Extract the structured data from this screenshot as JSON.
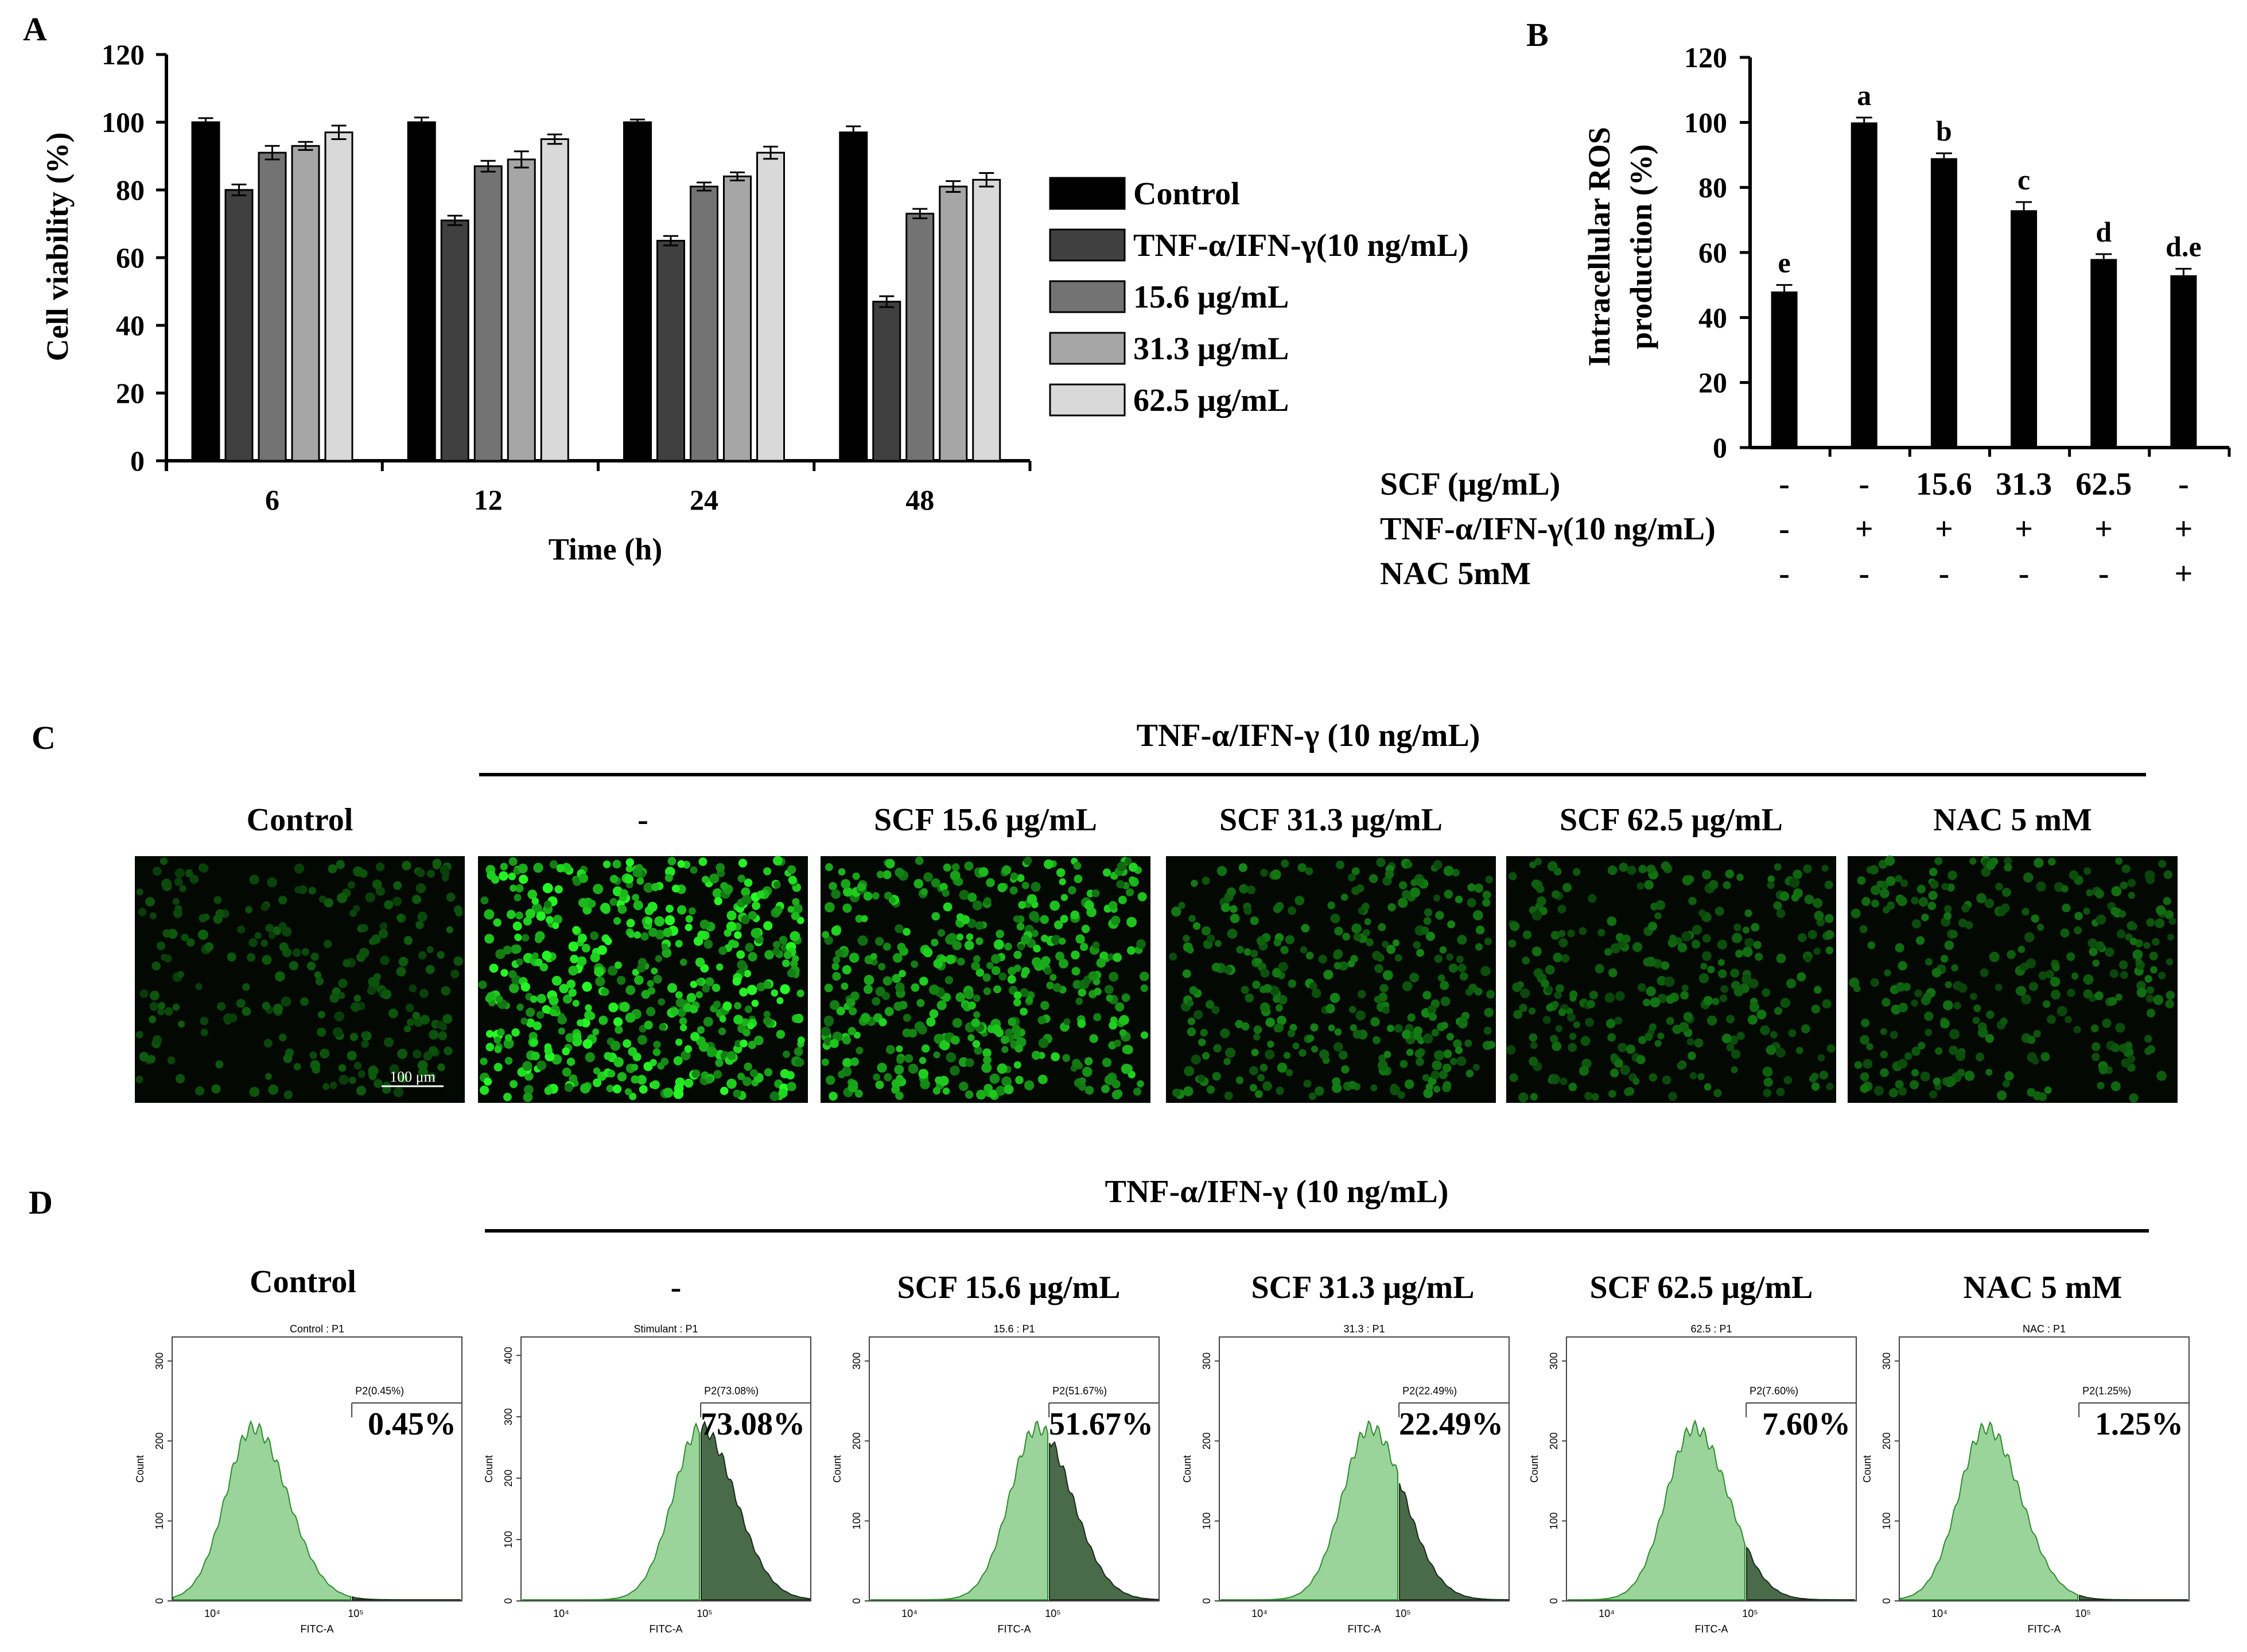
{
  "panels": {
    "A": "A",
    "B": "B",
    "C": "C",
    "D": "D"
  },
  "colors": {
    "control": "#000000",
    "tnf": "#404040",
    "scf156": "#737373",
    "scf313": "#a6a6a6",
    "scf625": "#d9d9d9",
    "hist_light": "#9bd49b",
    "hist_dark": "#4a6b4a",
    "hist_line": "#2e8b2e",
    "fluor": "#33dd33"
  },
  "chart_data": [
    {
      "type": "bar",
      "ylabel": "Cell viability (%)",
      "xlabel": "Time (h)",
      "ylim": [
        0,
        120
      ],
      "yticks": [
        "0",
        "20",
        "40",
        "60",
        "80",
        "100",
        "120"
      ],
      "categories": [
        "6",
        "12",
        "24",
        "48"
      ],
      "series": [
        {
          "name": "Control",
          "values": [
            100,
            100,
            100,
            97
          ],
          "errors": [
            1.2,
            1.4,
            0.8,
            1.8
          ]
        },
        {
          "name": "TNF-α/IFN-γ(10 ng/mL)",
          "values": [
            80,
            71,
            65,
            47
          ],
          "errors": [
            1.6,
            1.4,
            1.4,
            1.6
          ]
        },
        {
          "name": "15.6 μg/mL",
          "values": [
            91,
            87,
            81,
            73
          ],
          "errors": [
            2.0,
            1.6,
            1.2,
            1.4
          ]
        },
        {
          "name": "31.3 μg/mL",
          "values": [
            93,
            89,
            84,
            81
          ],
          "errors": [
            1.2,
            2.4,
            1.2,
            1.6
          ]
        },
        {
          "name": "62.5 μg/mL",
          "values": [
            97,
            95,
            91,
            83
          ],
          "errors": [
            2.0,
            1.4,
            1.8,
            2.0
          ]
        }
      ]
    },
    {
      "type": "bar",
      "ylabel_line1": "Intracellular ROS",
      "ylabel_line2": "production (%)",
      "ylim": [
        0,
        120
      ],
      "yticks": [
        "0",
        "20",
        "40",
        "60",
        "80",
        "100",
        "120"
      ],
      "values": [
        48,
        100,
        89,
        73,
        58,
        53
      ],
      "errors": [
        2.0,
        1.5,
        1.5,
        2.5,
        1.5,
        2.0
      ],
      "letters": [
        "e",
        "a",
        "b",
        "c",
        "d",
        "d.e"
      ],
      "rows": [
        {
          "label": "SCF (μg/mL)",
          "cells": [
            "-",
            "-",
            "15.6",
            "31.3",
            "62.5",
            "-"
          ]
        },
        {
          "label": "TNF-α/IFN-γ(10 ng/mL)",
          "cells": [
            "-",
            "+",
            "+",
            "+",
            "+",
            "+"
          ]
        },
        {
          "label": "NAC 5mM",
          "cells": [
            "-",
            "-",
            "-",
            "-",
            "-",
            "+"
          ]
        }
      ]
    }
  ],
  "panelC": {
    "header": "TNF-α/IFN-γ (10 ng/mL)",
    "labels": [
      "Control",
      "-",
      "SCF 15.6 μg/mL",
      "SCF 31.3 μg/mL",
      "SCF 62.5 μg/mL",
      "NAC 5 mM"
    ],
    "intensity": [
      0.25,
      1.0,
      0.8,
      0.45,
      0.35,
      0.35
    ],
    "scale_bar": "100 μm"
  },
  "panelD": {
    "header": "TNF-α/IFN-γ (10 ng/mL)",
    "labels": [
      "Control",
      "-",
      "SCF 15.6 μg/mL",
      "SCF 31.3 μg/mL",
      "SCF 62.5 μg/mL",
      "NAC 5 mM"
    ],
    "titles": [
      "Control : P1",
      "Stimulant : P1",
      "15.6 : P1",
      "31.3 : P1",
      "62.5 : P1",
      "NAC : P1"
    ],
    "gates": [
      "P2(0.45%)",
      "P2(73.08%)",
      "P2(51.67%)",
      "P2(22.49%)",
      "P2(7.60%)",
      "P2(1.25%)"
    ],
    "percents": [
      "0.45%",
      "73.08%",
      "51.67%",
      "22.49%",
      "7.60%",
      "1.25%"
    ],
    "peak_positions": [
      0.28,
      0.62,
      0.58,
      0.52,
      0.44,
      0.3
    ],
    "y_ticks": [
      [
        "0",
        "100",
        "200",
        "300"
      ],
      [
        "0",
        "100",
        "200",
        "300",
        "400"
      ],
      [
        "0",
        "100",
        "200",
        "300"
      ],
      [
        "0",
        "100",
        "200",
        "300"
      ],
      [
        "0",
        "100",
        "200",
        "300"
      ],
      [
        "0",
        "100",
        "200",
        "300"
      ]
    ],
    "x_ticks": [
      "10⁴",
      "10⁵"
    ],
    "xlabel": "FITC-A",
    "ylabel": "Count"
  }
}
